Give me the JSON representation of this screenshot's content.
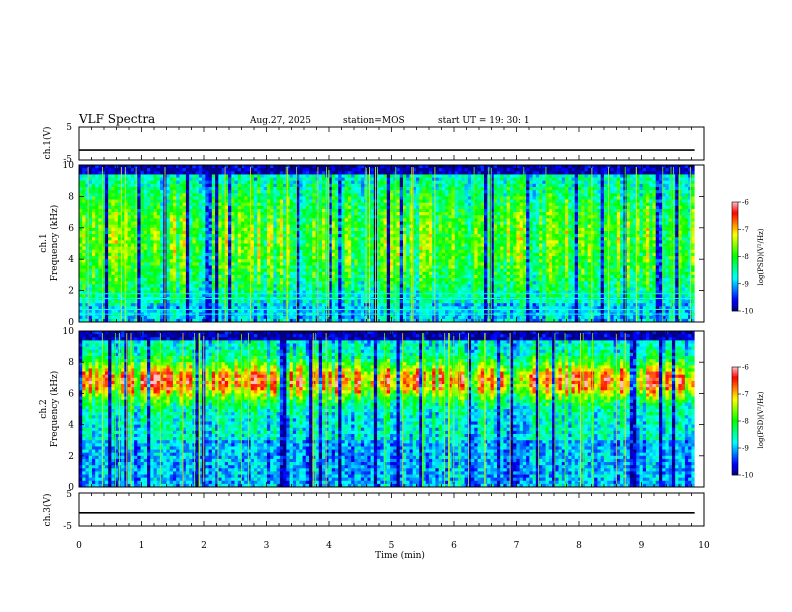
{
  "header": {
    "title": "VLF Spectra",
    "date": "Aug.27, 2025",
    "station": "station=MOS",
    "start": "start  UT  =   19: 30: 1"
  },
  "chart_data": [
    {
      "type": "line",
      "name": "ch1-voltage",
      "ylabel": "ch.1(V)",
      "ylim": [
        -5,
        5
      ],
      "yticks": [
        "5",
        "-5"
      ],
      "xlim": [
        0,
        10
      ],
      "level": -2.0
    },
    {
      "type": "heatmap",
      "name": "ch1-spectrogram",
      "ylabel": "ch.1\nFrequency (kHz)",
      "ylabel_top": "ch.1",
      "ylabel_bottom": "Frequency (kHz)",
      "ylim": [
        0,
        10
      ],
      "yticks": [
        "0",
        "2",
        "4",
        "6",
        "8",
        "10"
      ],
      "xlim": [
        0,
        10
      ],
      "data_end_min": 9.85,
      "lines_khz": [
        0.5,
        0.8,
        1.5,
        1.8
      ],
      "colorbar": {
        "range": [
          -10,
          -6
        ],
        "ticks": [
          "-6",
          "-7",
          "-8",
          "-9",
          "-10"
        ],
        "label": "log(PSD)(V²/Hz)"
      }
    },
    {
      "type": "heatmap",
      "name": "ch2-spectrogram",
      "ylabel": "ch.2\nFrequency (kHz)",
      "ylabel_top": "ch.2",
      "ylabel_bottom": "Frequency (kHz)",
      "ylim": [
        0,
        10
      ],
      "yticks": [
        "0",
        "2",
        "4",
        "6",
        "8",
        "10"
      ],
      "xlim": [
        0,
        10
      ],
      "data_end_min": 9.85,
      "colorbar": {
        "range": [
          -10,
          -6
        ],
        "ticks": [
          "-6",
          "-7",
          "-8",
          "-9",
          "-10"
        ],
        "label": "log(PSD)(V²/Hz)"
      }
    },
    {
      "type": "line",
      "name": "ch3-voltage",
      "ylabel": "ch.3(V)",
      "ylim": [
        -5,
        5
      ],
      "yticks": [
        "5",
        "-5"
      ],
      "xlim": [
        0,
        10
      ],
      "level": -1.0,
      "xlabel": "Time (min)",
      "xticks": [
        "0",
        "1",
        "2",
        "3",
        "4",
        "5",
        "6",
        "7",
        "8",
        "9",
        "10"
      ]
    }
  ],
  "colormap": [
    "#000080",
    "#0000ff",
    "#0080ff",
    "#00ffff",
    "#00ff80",
    "#00ff00",
    "#80ff00",
    "#ffff00",
    "#ff8000",
    "#ff0000",
    "#ffc0c0"
  ]
}
